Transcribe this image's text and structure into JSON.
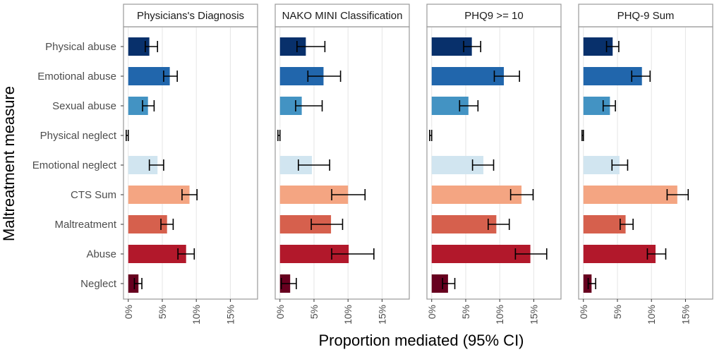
{
  "chart_data": {
    "type": "bar",
    "orientation": "horizontal",
    "xlabel": "Proportion mediated (95% CI)",
    "ylabel": "Maltreatment measure",
    "xlim": [
      -0.7,
      19
    ],
    "xticks": [
      0,
      5,
      10,
      15
    ],
    "xtick_labels": [
      "0%",
      "5%",
      "10%",
      "15%"
    ],
    "categories": [
      "Physical abuse",
      "Emotional abuse",
      "Sexual abuse",
      "Physical neglect",
      "Emotional neglect",
      "CTS Sum",
      "Maltreatment",
      "Abuse",
      "Neglect"
    ],
    "colors": [
      "#08306b",
      "#2166ac",
      "#4393c3",
      "#f7f7f7",
      "#d1e5f0",
      "#f4a582",
      "#d6604d",
      "#b2182b",
      "#67001f"
    ],
    "panels": [
      {
        "title": "Physicians's Diagnosis",
        "values": [
          3.1,
          6.1,
          2.9,
          -0.1,
          4.3,
          9.0,
          5.7,
          8.5,
          1.5
        ],
        "ci_low": [
          2.5,
          5.2,
          2.1,
          -0.3,
          3.1,
          7.9,
          4.8,
          7.3,
          0.9
        ],
        "ci_high": [
          4.3,
          7.2,
          3.8,
          0.0,
          5.2,
          10.1,
          6.6,
          9.7,
          2.0
        ]
      },
      {
        "title": "NAKO MINI Classification",
        "values": [
          3.8,
          6.4,
          3.2,
          -0.1,
          4.7,
          10.0,
          7.5,
          10.1,
          1.5
        ],
        "ci_low": [
          2.5,
          4.1,
          2.3,
          -0.3,
          2.7,
          7.6,
          4.6,
          7.6,
          0.2
        ],
        "ci_high": [
          6.6,
          8.9,
          6.2,
          0.0,
          7.3,
          12.5,
          9.2,
          13.8,
          2.4
        ]
      },
      {
        "title": "PHQ9 >= 10",
        "values": [
          5.9,
          10.6,
          5.4,
          -0.1,
          7.6,
          13.2,
          9.5,
          14.5,
          2.4
        ],
        "ci_low": [
          4.7,
          9.2,
          4.1,
          -0.3,
          6.0,
          11.6,
          8.3,
          12.3,
          1.6
        ],
        "ci_high": [
          7.2,
          12.9,
          6.8,
          0.0,
          9.1,
          14.9,
          11.4,
          16.9,
          3.4
        ]
      },
      {
        "title": "PHQ-9 Sum",
        "values": [
          4.3,
          8.6,
          3.9,
          -0.1,
          5.3,
          13.8,
          6.2,
          10.6,
          1.2
        ],
        "ci_low": [
          3.4,
          7.1,
          2.9,
          -0.2,
          4.2,
          12.3,
          5.4,
          9.4,
          0.7
        ],
        "ci_high": [
          5.2,
          9.8,
          4.7,
          0.0,
          6.5,
          15.4,
          7.3,
          12.1,
          1.8
        ]
      }
    ]
  }
}
